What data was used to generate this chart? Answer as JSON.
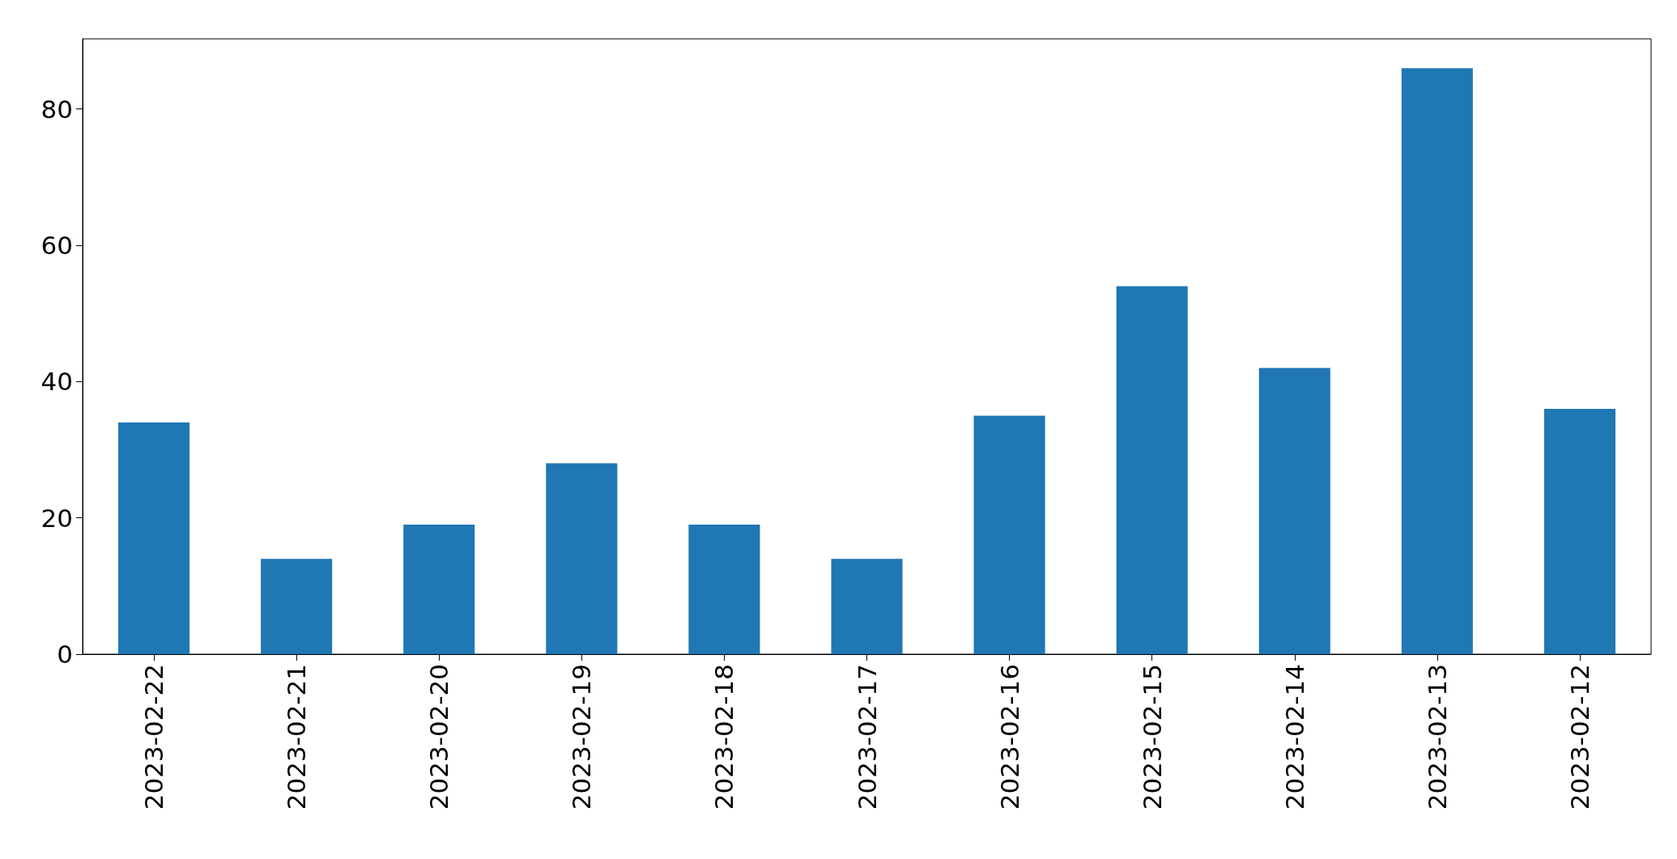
{
  "chart_data": {
    "type": "bar",
    "categories": [
      "2023-02-22",
      "2023-02-21",
      "2023-02-20",
      "2023-02-19",
      "2023-02-18",
      "2023-02-17",
      "2023-02-16",
      "2023-02-15",
      "2023-02-14",
      "2023-02-13",
      "2023-02-12"
    ],
    "values": [
      34,
      14,
      19,
      28,
      19,
      14,
      35,
      54,
      42,
      86,
      36
    ],
    "color": "#1f77b4",
    "ylim": [
      0,
      90.3
    ],
    "yticks": [
      0,
      20,
      40,
      60,
      80
    ],
    "grid": false
  }
}
